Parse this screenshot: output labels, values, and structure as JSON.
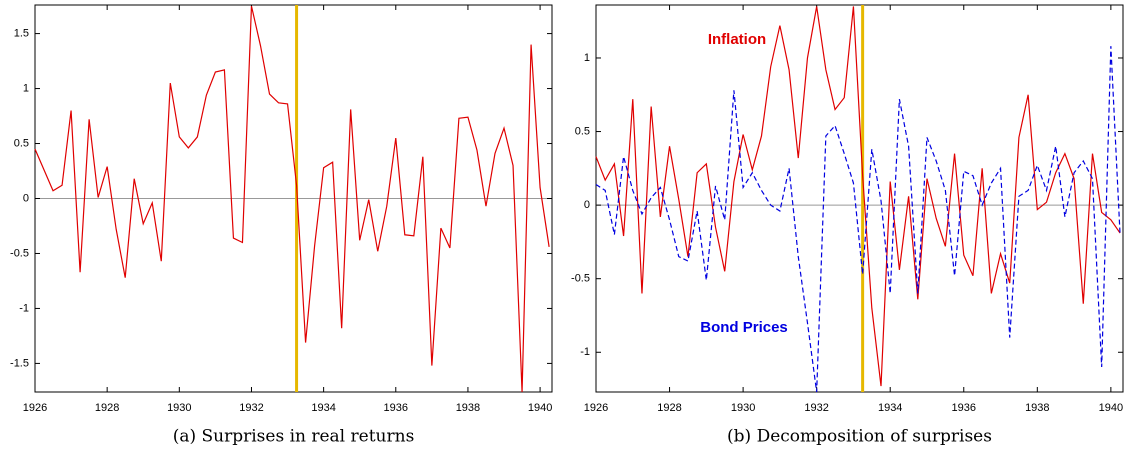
{
  "chart_data": [
    {
      "type": "line",
      "caption": "(a) Surprises in real returns",
      "color": "#e00000",
      "reference_x": 1933.25,
      "reference_color": "#e6b800",
      "x": [
        1926,
        1926.25,
        1926.5,
        1926.75,
        1927,
        1927.25,
        1927.5,
        1927.75,
        1928,
        1928.25,
        1928.5,
        1928.75,
        1929,
        1929.25,
        1929.5,
        1929.75,
        1930,
        1930.25,
        1930.5,
        1930.75,
        1931,
        1931.25,
        1931.5,
        1931.75,
        1932,
        1932.25,
        1932.5,
        1932.75,
        1933,
        1933.25,
        1933.5,
        1933.75,
        1934,
        1934.25,
        1934.5,
        1934.75,
        1935,
        1935.25,
        1935.5,
        1935.75,
        1936,
        1936.25,
        1936.5,
        1936.75,
        1937,
        1937.25,
        1937.5,
        1937.75,
        1938,
        1938.25,
        1938.5,
        1938.75,
        1939,
        1939.25,
        1939.5,
        1939.75,
        1940,
        1940.25
      ],
      "values": [
        0.45,
        0.26,
        0.07,
        0.12,
        0.8,
        -0.67,
        0.72,
        0.01,
        0.29,
        -0.28,
        -0.72,
        0.18,
        -0.23,
        -0.04,
        -0.57,
        1.05,
        0.56,
        0.46,
        0.56,
        0.94,
        1.15,
        1.17,
        -0.36,
        -0.4,
        1.75,
        1.39,
        0.95,
        0.87,
        0.86,
        0.12,
        -1.31,
        -0.43,
        0.28,
        0.33,
        -1.18,
        0.81,
        -0.38,
        -0.01,
        -0.48,
        -0.07,
        0.55,
        -0.33,
        -0.34,
        0.38,
        -1.52,
        -0.27,
        -0.45,
        0.73,
        0.74,
        0.44,
        -0.07,
        0.41,
        0.64,
        0.3,
        -1.76,
        1.4,
        0.1,
        -0.44
      ],
      "xlim": [
        1926,
        1940.33
      ],
      "xticks": [
        1926,
        1928,
        1930,
        1932,
        1934,
        1936,
        1938,
        1940
      ],
      "ylim": [
        -1.76,
        1.76
      ],
      "yticks": [
        -1.5,
        -1,
        -0.5,
        0,
        0.5,
        1,
        1.5
      ]
    },
    {
      "type": "line",
      "caption": "(b) Decomposition of surprises",
      "reference_x": 1933.25,
      "reference_color": "#e6b800",
      "x": [
        1926,
        1926.25,
        1926.5,
        1926.75,
        1927,
        1927.25,
        1927.5,
        1927.75,
        1928,
        1928.25,
        1928.5,
        1928.75,
        1929,
        1929.25,
        1929.5,
        1929.75,
        1930,
        1930.25,
        1930.5,
        1930.75,
        1931,
        1931.25,
        1931.5,
        1931.75,
        1932,
        1932.25,
        1932.5,
        1932.75,
        1933,
        1933.25,
        1933.5,
        1933.75,
        1934,
        1934.25,
        1934.5,
        1934.75,
        1935,
        1935.25,
        1935.5,
        1935.75,
        1936,
        1936.25,
        1936.5,
        1936.75,
        1937,
        1937.25,
        1937.5,
        1937.75,
        1938,
        1938.25,
        1938.5,
        1938.75,
        1939,
        1939.25,
        1939.5,
        1939.75,
        1940,
        1940.25
      ],
      "series": [
        {
          "name": "Inflation",
          "color": "#e00000",
          "dashed": false,
          "values": [
            0.33,
            0.17,
            0.28,
            -0.21,
            0.72,
            -0.6,
            0.67,
            -0.08,
            0.4,
            0.04,
            -0.35,
            0.22,
            0.28,
            -0.15,
            -0.45,
            0.16,
            0.48,
            0.24,
            0.47,
            0.94,
            1.22,
            0.92,
            0.32,
            1.0,
            1.35,
            0.92,
            0.65,
            0.73,
            1.35,
            0.2,
            -0.7,
            -1.23,
            0.16,
            -0.44,
            0.06,
            -0.64,
            0.18,
            -0.09,
            -0.28,
            0.35,
            -0.34,
            -0.48,
            0.25,
            -0.6,
            -0.33,
            -0.53,
            0.46,
            0.75,
            -0.03,
            0.02,
            0.22,
            0.35,
            0.18,
            -0.67,
            0.35,
            -0.05,
            -0.1,
            -0.19
          ]
        },
        {
          "name": "Bond Prices",
          "color": "#0000e0",
          "dashed": true,
          "values": [
            0.14,
            0.1,
            -0.2,
            0.33,
            0.1,
            -0.06,
            0.05,
            0.12,
            -0.1,
            -0.35,
            -0.38,
            -0.04,
            -0.51,
            0.13,
            -0.1,
            0.78,
            0.12,
            0.22,
            0.1,
            0.0,
            -0.04,
            0.25,
            -0.35,
            -0.8,
            -1.27,
            0.47,
            0.54,
            0.35,
            0.15,
            -0.47,
            0.38,
            0.03,
            -0.6,
            0.72,
            0.4,
            -0.6,
            0.46,
            0.3,
            0.1,
            -0.48,
            0.23,
            0.2,
            0.0,
            0.15,
            0.25,
            -0.9,
            0.06,
            0.1,
            0.27,
            0.1,
            0.4,
            -0.08,
            0.22,
            0.3,
            0.18,
            -1.1,
            1.08,
            -0.2
          ]
        }
      ],
      "xlim": [
        1926,
        1940.33
      ],
      "xticks": [
        1926,
        1928,
        1930,
        1932,
        1934,
        1936,
        1938,
        1940
      ],
      "ylim": [
        -1.27,
        1.36
      ],
      "yticks": [
        -1,
        -0.5,
        0,
        0.5,
        1
      ]
    }
  ]
}
